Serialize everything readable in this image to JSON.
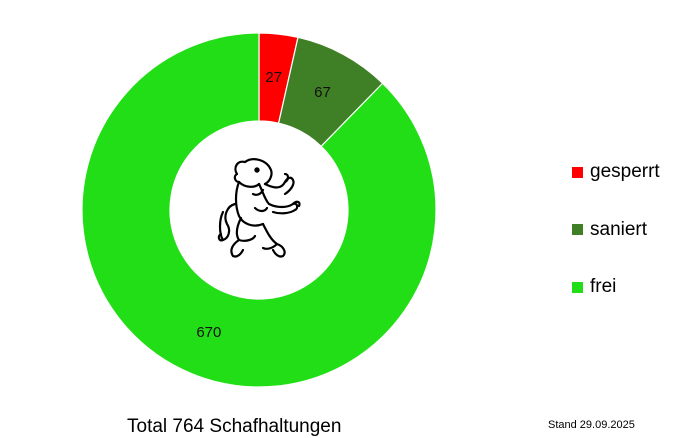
{
  "chart_data": {
    "type": "pie",
    "donut": true,
    "categories": [
      "gesperrt",
      "saniert",
      "frei"
    ],
    "values": [
      27,
      67,
      670
    ],
    "colors": [
      "#ff0000",
      "#3f7f25",
      "#22de16"
    ],
    "legend_position": "right",
    "center_emblem": "rampant-lion-coat-of-arms"
  },
  "footer": {
    "total": "Total 764 Schafhaltungen",
    "stand": "Stand 29.09.2025"
  }
}
